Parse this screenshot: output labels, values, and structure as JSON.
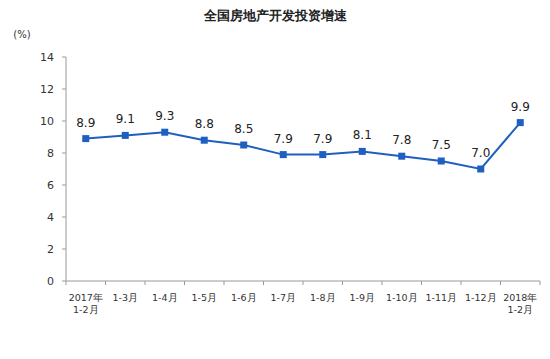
{
  "chart_data": {
    "type": "line",
    "title": "全国房地产开发投资增速",
    "y_label": "(%)",
    "categories": [
      "2017年\n1-2月",
      "1-3月",
      "1-4月",
      "1-5月",
      "1-6月",
      "1-7月",
      "1-8月",
      "1-9月",
      "1-10月",
      "1-11月",
      "1-12月",
      "2018年\n1-2月"
    ],
    "values": [
      8.9,
      9.1,
      9.3,
      8.8,
      8.5,
      7.9,
      7.9,
      8.1,
      7.8,
      7.5,
      7.0,
      9.9
    ],
    "value_labels": [
      "8.9",
      "9.1",
      "9.3",
      "8.8",
      "8.5",
      "7.9",
      "7.9",
      "8.1",
      "7.8",
      "7.5",
      "7.0",
      "9.9"
    ],
    "color": "#1f5fc0",
    "marker": "square",
    "data_labels": true,
    "ylim": [
      0,
      14
    ],
    "yticks": [
      0,
      2,
      4,
      6,
      8,
      10,
      12,
      14
    ],
    "grid": false
  }
}
